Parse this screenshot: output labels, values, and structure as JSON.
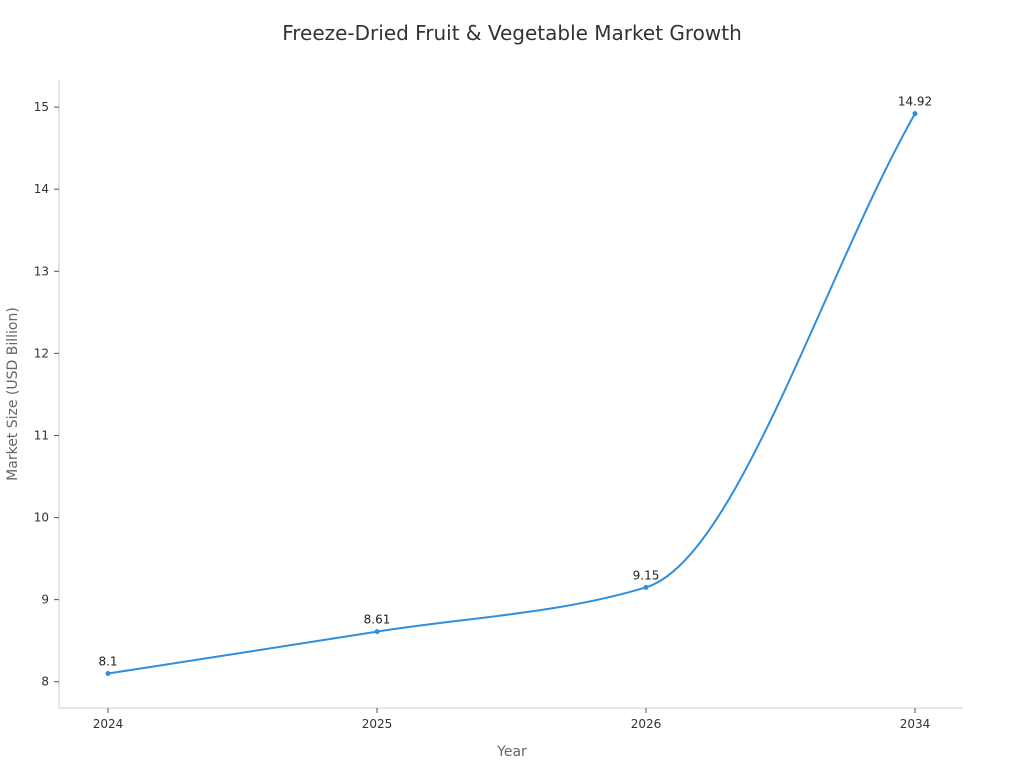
{
  "chart_data": {
    "type": "line",
    "title": "Freeze-Dried Fruit & Vegetable Market Growth",
    "xlabel": "Year",
    "ylabel": "Market Size (USD Billion)",
    "categories": [
      "2024",
      "2025",
      "2026",
      "2034"
    ],
    "series": [
      {
        "values": [
          8.1,
          8.61,
          9.15,
          14.92
        ],
        "labels": [
          "8.1",
          "8.61",
          "9.15",
          "14.92"
        ],
        "color": "#2e8ee0"
      }
    ],
    "yticks": [
      "8",
      "9",
      "10",
      "11",
      "12",
      "13",
      "14",
      "15"
    ],
    "ylim": [
      7.68,
      15.33
    ],
    "grid": false,
    "legend": "none",
    "line_style": "smooth"
  }
}
